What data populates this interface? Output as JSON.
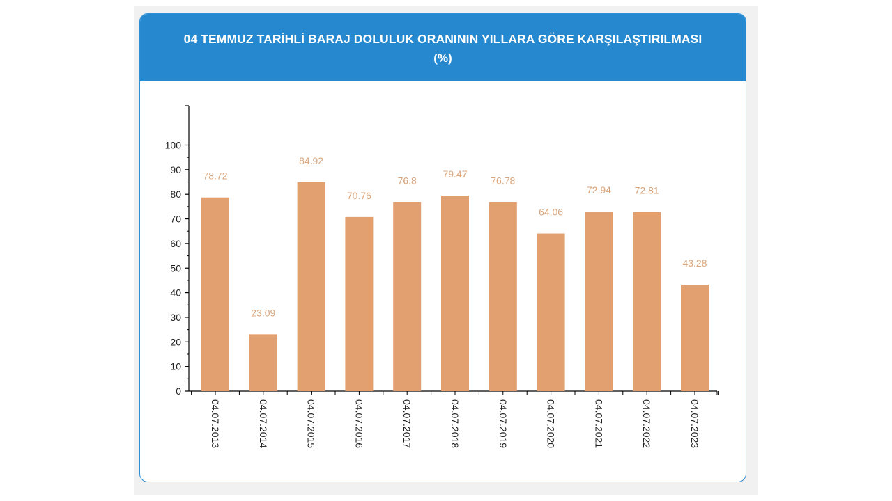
{
  "header": {
    "title": "04 TEMMUZ TARİHLİ BARAJ DOLULUK ORANININ YILLARA GÖRE KARŞILAŞTIRILMASI",
    "subtitle": "(%)"
  },
  "colors": {
    "header_bg": "#2689cf",
    "bar": "#e2a070",
    "data_label": "#d9a57c",
    "card_border": "#2f8fd4"
  },
  "chart_data": {
    "type": "bar",
    "title": "04 TEMMUZ TARİHLİ BARAJ DOLULUK ORANININ YILLARA GÖRE KARŞILAŞTIRILMASI",
    "subtitle": "(%)",
    "xlabel": "",
    "ylabel": "",
    "categories": [
      "04.07.2013",
      "04.07.2014",
      "04.07.2015",
      "04.07.2016",
      "04.07.2017",
      "04.07.2018",
      "04.07.2019",
      "04.07.2020",
      "04.07.2021",
      "04.07.2022",
      "04.07.2023"
    ],
    "values": [
      78.72,
      23.09,
      84.92,
      70.76,
      76.8,
      79.47,
      76.78,
      64.06,
      72.94,
      72.81,
      43.28
    ],
    "value_labels": [
      "78.72",
      "23.09",
      "84.92",
      "70.76",
      "76.8",
      "79.47",
      "76.78",
      "64.06",
      "72.94",
      "72.81",
      "43.28"
    ],
    "yticks": [
      "0",
      "10",
      "20",
      "30",
      "40",
      "50",
      "60",
      "70",
      "80",
      "90",
      "100"
    ],
    "ylim": [
      0,
      115
    ],
    "grid": false,
    "legend": "none"
  }
}
